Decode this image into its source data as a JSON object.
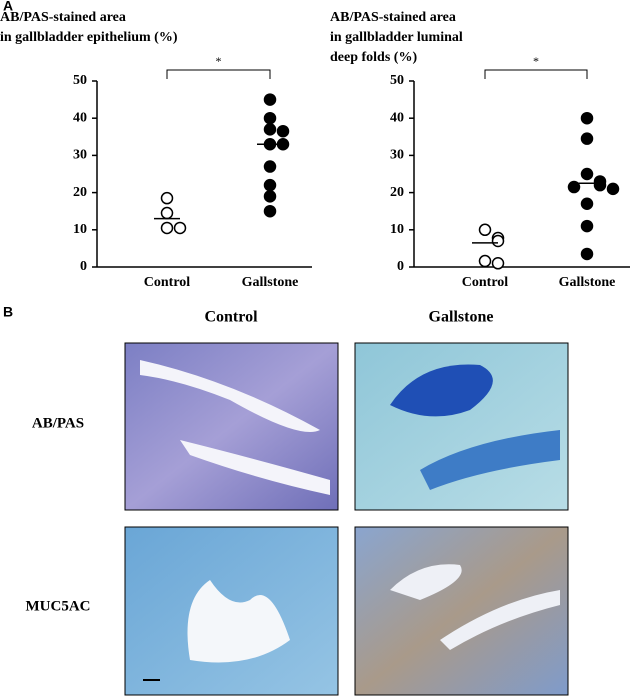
{
  "panel_a": {
    "label": "A"
  },
  "chart_data": [
    {
      "type": "scatter",
      "title": [
        "AB/PAS-stained area",
        "in gallbladder epithelium (%)"
      ],
      "categories": [
        "Control",
        "Gallstone"
      ],
      "groups": [
        {
          "values": [
            18.5,
            14.5,
            10.5,
            10.5
          ],
          "center": 13,
          "filled": false
        },
        {
          "values": [
            45,
            40,
            37,
            36.5,
            33,
            33,
            27,
            22,
            19,
            15
          ],
          "center": 33,
          "filled": true
        }
      ],
      "significance": "*",
      "ylim": [
        0,
        50
      ],
      "yticks": [
        0,
        10,
        20,
        30,
        40,
        50
      ],
      "color": "#000000"
    },
    {
      "type": "scatter",
      "title": [
        "AB/PAS-stained area",
        "in gallbladder luminal",
        "deep folds (%)"
      ],
      "categories": [
        "Control",
        "Gallstone"
      ],
      "groups": [
        {
          "values": [
            10,
            7.8,
            7,
            1.6,
            1
          ],
          "center": 6.5,
          "filled": false
        },
        {
          "values": [
            40,
            34.5,
            25,
            23,
            22,
            21.5,
            21,
            17,
            11,
            3.5
          ],
          "center": 22.5,
          "filled": true
        }
      ],
      "significance": "*",
      "ylim": [
        0,
        50
      ],
      "yticks": [
        0,
        10,
        20,
        30,
        40,
        50
      ],
      "color": "#000000"
    }
  ],
  "panel_b": {
    "label": "B",
    "columns": [
      "Control",
      "Gallstone"
    ],
    "rows": [
      "AB/PAS",
      "MUC5AC"
    ]
  }
}
